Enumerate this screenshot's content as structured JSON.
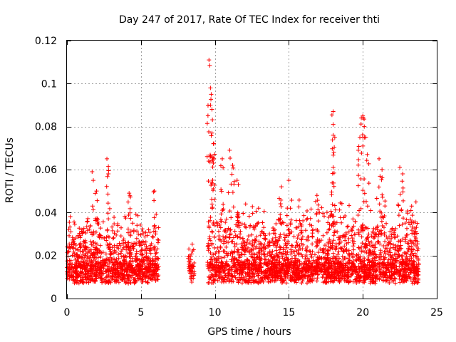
{
  "chart_data": {
    "type": "scatter",
    "title": "Day 247 of 2017, Rate Of TEC Index for receiver thti",
    "xlabel": "GPS time / hours",
    "ylabel": "ROTI / TECUs",
    "xlim": [
      0,
      25
    ],
    "ylim": [
      0,
      0.12
    ],
    "xticks": [
      0,
      5,
      10,
      15,
      20,
      25
    ],
    "xtick_labels": [
      "0",
      "5",
      "10",
      "15",
      "20",
      "25"
    ],
    "yticks": [
      0,
      0.02,
      0.04,
      0.06,
      0.08,
      0.1,
      0.12
    ],
    "ytick_labels": [
      "0",
      "0.02",
      "0.04",
      "0.06",
      "0.08",
      "0.1",
      "0.12"
    ],
    "grid": true,
    "marker": "+",
    "color": "#ff0000",
    "series": [
      {
        "name": "ROTI",
        "envelope": [
          {
            "x": [
              0.0,
              6.2
            ],
            "y_min": 0.004,
            "y_max": 0.045,
            "density": "high"
          },
          {
            "x": [
              8.2,
              8.6
            ],
            "y_min": 0.004,
            "y_max": 0.031,
            "density": "medium"
          },
          {
            "x": [
              9.5,
              23.8
            ],
            "y_min": 0.004,
            "y_max": 0.05,
            "density": "high"
          }
        ],
        "peaks": [
          {
            "x": 1.7,
            "y": 0.059
          },
          {
            "x": 2.0,
            "y": 0.05
          },
          {
            "x": 2.7,
            "y": 0.065
          },
          {
            "x": 2.8,
            "y": 0.058
          },
          {
            "x": 4.2,
            "y": 0.049
          },
          {
            "x": 5.9,
            "y": 0.05
          },
          {
            "x": 9.6,
            "y": 0.111
          },
          {
            "x": 9.7,
            "y": 0.098
          },
          {
            "x": 9.7,
            "y": 0.09
          },
          {
            "x": 9.8,
            "y": 0.088
          },
          {
            "x": 9.8,
            "y": 0.077
          },
          {
            "x": 9.9,
            "y": 0.072
          },
          {
            "x": 9.9,
            "y": 0.063
          },
          {
            "x": 10.5,
            "y": 0.065
          },
          {
            "x": 11.0,
            "y": 0.069
          },
          {
            "x": 11.2,
            "y": 0.062
          },
          {
            "x": 11.5,
            "y": 0.055
          },
          {
            "x": 14.5,
            "y": 0.052
          },
          {
            "x": 15.0,
            "y": 0.055
          },
          {
            "x": 16.9,
            "y": 0.048
          },
          {
            "x": 18.0,
            "y": 0.087
          },
          {
            "x": 18.0,
            "y": 0.081
          },
          {
            "x": 18.0,
            "y": 0.076
          },
          {
            "x": 18.0,
            "y": 0.061
          },
          {
            "x": 19.7,
            "y": 0.069
          },
          {
            "x": 19.8,
            "y": 0.075
          },
          {
            "x": 19.9,
            "y": 0.084
          },
          {
            "x": 20.0,
            "y": 0.085
          },
          {
            "x": 20.1,
            "y": 0.08
          },
          {
            "x": 20.3,
            "y": 0.067
          },
          {
            "x": 21.1,
            "y": 0.065
          },
          {
            "x": 21.3,
            "y": 0.06
          },
          {
            "x": 22.5,
            "y": 0.061
          },
          {
            "x": 22.7,
            "y": 0.058
          },
          {
            "x": 23.3,
            "y": 0.043
          }
        ]
      }
    ]
  }
}
